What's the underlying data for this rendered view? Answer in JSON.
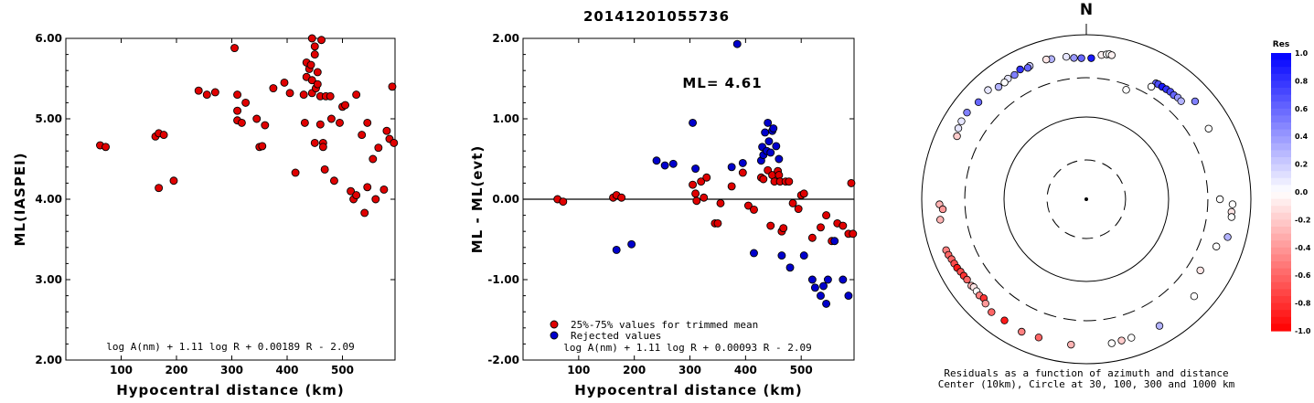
{
  "title": "20141201055736",
  "chart_data": [
    {
      "type": "scatter",
      "xlabel": "Hypocentral distance (km)",
      "ylabel": "ML(IASPEI)",
      "xlim": [
        0,
        595
      ],
      "ylim": [
        2.0,
        6.0
      ],
      "x_ticks": [
        "100",
        "200",
        "300",
        "400",
        "500"
      ],
      "y_ticks": [
        "2.00",
        "3.00",
        "4.00",
        "5.00",
        "6.00"
      ],
      "formula": "log A(nm) + 1.11 log R + 0.00189 R - 2.09",
      "series": [
        {
          "color": "#e00000",
          "points": [
            [
              62,
              4.67
            ],
            [
              72,
              4.65
            ],
            [
              162,
              4.78
            ],
            [
              168,
              4.82
            ],
            [
              177,
              4.8
            ],
            [
              168,
              4.14
            ],
            [
              195,
              4.23
            ],
            [
              240,
              5.35
            ],
            [
              255,
              5.3
            ],
            [
              270,
              5.33
            ],
            [
              305,
              5.88
            ],
            [
              310,
              5.3
            ],
            [
              310,
              5.1
            ],
            [
              310,
              4.98
            ],
            [
              318,
              4.95
            ],
            [
              325,
              5.2
            ],
            [
              345,
              5.0
            ],
            [
              350,
              4.65
            ],
            [
              355,
              4.66
            ],
            [
              360,
              4.92
            ],
            [
              375,
              5.38
            ],
            [
              395,
              5.45
            ],
            [
              405,
              5.32
            ],
            [
              415,
              4.33
            ],
            [
              430,
              5.3
            ],
            [
              432,
              4.95
            ],
            [
              435,
              5.52
            ],
            [
              435,
              5.7
            ],
            [
              440,
              5.62
            ],
            [
              443,
              5.67
            ],
            [
              445,
              6.0
            ],
            [
              445,
              5.48
            ],
            [
              445,
              5.32
            ],
            [
              450,
              5.9
            ],
            [
              450,
              5.8
            ],
            [
              450,
              4.7
            ],
            [
              452,
              5.38
            ],
            [
              455,
              5.58
            ],
            [
              455,
              5.43
            ],
            [
              460,
              5.28
            ],
            [
              460,
              4.93
            ],
            [
              462,
              5.98
            ],
            [
              465,
              4.7
            ],
            [
              465,
              4.65
            ],
            [
              468,
              4.37
            ],
            [
              470,
              5.28
            ],
            [
              478,
              5.28
            ],
            [
              480,
              5.0
            ],
            [
              485,
              4.23
            ],
            [
              495,
              4.95
            ],
            [
              500,
              5.15
            ],
            [
              505,
              5.17
            ],
            [
              515,
              4.1
            ],
            [
              520,
              4.0
            ],
            [
              525,
              5.3
            ],
            [
              525,
              4.05
            ],
            [
              535,
              4.8
            ],
            [
              540,
              3.83
            ],
            [
              545,
              4.15
            ],
            [
              545,
              4.95
            ],
            [
              555,
              4.5
            ],
            [
              560,
              4.0
            ],
            [
              565,
              4.64
            ],
            [
              575,
              4.12
            ],
            [
              580,
              4.85
            ],
            [
              585,
              4.75
            ],
            [
              590,
              5.4
            ],
            [
              593,
              4.7
            ]
          ]
        }
      ]
    },
    {
      "type": "scatter",
      "xlabel": "Hypocentral distance (km)",
      "ylabel": "ML - ML(evt)",
      "xlim": [
        0,
        595
      ],
      "ylim": [
        -2.0,
        2.0
      ],
      "x_ticks": [
        "100",
        "200",
        "300",
        "400",
        "500"
      ],
      "y_ticks": [
        "-2.00",
        "-1.00",
        "0.00",
        "1.00",
        "2.00"
      ],
      "reference_line": 0.0,
      "annotation": "ML= 4.61",
      "formula": "log A(nm) + 1.11 log R + 0.00093 R - 2.09",
      "legend": [
        "25%-75% values for trimmed mean",
        "Rejected values"
      ],
      "series": [
        {
          "name": "25%-75% values for trimmed mean",
          "color": "#e00000",
          "points": [
            [
              62,
              0.0
            ],
            [
              72,
              -0.03
            ],
            [
              162,
              0.02
            ],
            [
              168,
              0.05
            ],
            [
              177,
              0.02
            ],
            [
              305,
              0.18
            ],
            [
              310,
              0.07
            ],
            [
              312,
              -0.02
            ],
            [
              320,
              0.22
            ],
            [
              325,
              0.02
            ],
            [
              330,
              0.27
            ],
            [
              345,
              -0.3
            ],
            [
              350,
              -0.3
            ],
            [
              355,
              -0.05
            ],
            [
              375,
              0.16
            ],
            [
              395,
              0.33
            ],
            [
              405,
              -0.08
            ],
            [
              415,
              -0.13
            ],
            [
              428,
              0.27
            ],
            [
              432,
              0.25
            ],
            [
              440,
              0.36
            ],
            [
              445,
              -0.33
            ],
            [
              448,
              0.3
            ],
            [
              452,
              0.22
            ],
            [
              458,
              0.35
            ],
            [
              460,
              0.3
            ],
            [
              462,
              0.22
            ],
            [
              465,
              -0.4
            ],
            [
              468,
              -0.36
            ],
            [
              472,
              0.22
            ],
            [
              478,
              0.22
            ],
            [
              485,
              -0.05
            ],
            [
              495,
              -0.12
            ],
            [
              500,
              0.05
            ],
            [
              505,
              0.07
            ],
            [
              520,
              -0.48
            ],
            [
              535,
              -0.35
            ],
            [
              545,
              -0.2
            ],
            [
              555,
              -0.52
            ],
            [
              565,
              -0.3
            ],
            [
              575,
              -0.33
            ],
            [
              585,
              -0.43
            ],
            [
              590,
              0.2
            ],
            [
              593,
              -0.43
            ]
          ]
        },
        {
          "name": "Rejected values",
          "color": "#0000cc",
          "points": [
            [
              168,
              -0.63
            ],
            [
              195,
              -0.56
            ],
            [
              240,
              0.48
            ],
            [
              255,
              0.42
            ],
            [
              270,
              0.44
            ],
            [
              305,
              0.95
            ],
            [
              310,
              0.38
            ],
            [
              375,
              0.4
            ],
            [
              385,
              1.93
            ],
            [
              395,
              0.45
            ],
            [
              415,
              -0.67
            ],
            [
              428,
              0.48
            ],
            [
              430,
              0.65
            ],
            [
              432,
              0.55
            ],
            [
              435,
              0.83
            ],
            [
              438,
              0.6
            ],
            [
              440,
              0.95
            ],
            [
              442,
              0.72
            ],
            [
              445,
              0.58
            ],
            [
              448,
              0.85
            ],
            [
              450,
              0.88
            ],
            [
              455,
              0.66
            ],
            [
              460,
              0.5
            ],
            [
              465,
              -0.7
            ],
            [
              480,
              -0.85
            ],
            [
              505,
              -0.7
            ],
            [
              520,
              -1.0
            ],
            [
              525,
              -1.1
            ],
            [
              535,
              -1.2
            ],
            [
              540,
              -1.08
            ],
            [
              545,
              -1.3
            ],
            [
              548,
              -1.0
            ],
            [
              560,
              -0.52
            ],
            [
              575,
              -1.0
            ],
            [
              585,
              -1.2
            ]
          ]
        }
      ]
    },
    {
      "type": "polar-scatter",
      "north_label": "N",
      "caption_line1": "Residuals as a function of azimuth and distance",
      "caption_line2": "Center (10km), Circle at 30, 100, 300 and 1000 km",
      "colorbar_title": "Res",
      "colorbar_ticks": [
        "1.0",
        "0.8",
        "0.6",
        "0.4",
        "0.2",
        "0.0",
        "-0.2",
        "-0.4",
        "-0.6",
        "-0.8",
        "-1.0"
      ],
      "colorbar_range": [
        -1.0,
        1.0
      ],
      "colors": {
        "positive": "#0000ff",
        "neutral": "#ffffff",
        "negative": "#ff0000"
      },
      "rings_km": [
        30,
        100,
        300,
        1000
      ],
      "points_az_dist_res": [
        [
          2,
          520,
          0.9
        ],
        [
          358,
          520,
          0.6
        ],
        [
          355,
          530,
          0.4
        ],
        [
          352,
          560,
          0.1
        ],
        [
          6,
          580,
          -0.05
        ],
        [
          8,
          600,
          0.0
        ],
        [
          9,
          610,
          0.0
        ],
        [
          10,
          600,
          -0.05
        ],
        [
          346,
          570,
          0.3
        ],
        [
          344,
          585,
          -0.1
        ],
        [
          337,
          575,
          0.2
        ],
        [
          333,
          590,
          0.8
        ],
        [
          336,
          560,
          0.6
        ],
        [
          330,
          555,
          0.5
        ],
        [
          327,
          560,
          0.1
        ],
        [
          325,
          540,
          0.0
        ],
        [
          322,
          540,
          0.3
        ],
        [
          318,
          610,
          0.1
        ],
        [
          312,
          580,
          0.6
        ],
        [
          306,
          620,
          0.5
        ],
        [
          302,
          615,
          0.1
        ],
        [
          299,
          600,
          0.1
        ],
        [
          296,
          560,
          -0.2
        ],
        [
          268,
          610,
          -0.3
        ],
        [
          266,
          560,
          -0.4
        ],
        [
          262,
          620,
          -0.3
        ],
        [
          250,
          650,
          -0.5
        ],
        [
          248,
          640,
          -0.6
        ],
        [
          246,
          620,
          -0.6
        ],
        [
          244,
          610,
          -0.7
        ],
        [
          242,
          600,
          -0.9
        ],
        [
          240,
          580,
          -0.7
        ],
        [
          238,
          570,
          -0.8
        ],
        [
          236,
          560,
          -0.6
        ],
        [
          233,
          560,
          -0.3
        ],
        [
          232,
          545,
          -0.1
        ],
        [
          230,
          550,
          0.0
        ],
        [
          228,
          560,
          -0.5
        ],
        [
          226,
          540,
          -0.8
        ],
        [
          224,
          580,
          -0.4
        ],
        [
          220,
          620,
          -0.6
        ],
        [
          214,
          600,
          -0.9
        ],
        [
          206,
          620,
          -0.5
        ],
        [
          199,
          600,
          -0.6
        ],
        [
          186,
          600,
          -0.3
        ],
        [
          170,
          600,
          0.0
        ],
        [
          166,
          590,
          -0.2
        ],
        [
          162,
          590,
          0.0
        ],
        [
          150,
          600,
          0.3
        ],
        [
          132,
          580,
          0.0
        ],
        [
          122,
          430,
          -0.1
        ],
        [
          92,
          600,
          0.0
        ],
        [
          95,
          590,
          -0.1
        ],
        [
          97,
          600,
          0.0
        ],
        [
          105,
          600,
          0.3
        ],
        [
          110,
          480,
          0.0
        ],
        [
          90,
          420,
          0.0
        ],
        [
          60,
          520,
          0.0
        ],
        [
          48,
          600,
          0.5
        ],
        [
          31,
          440,
          0.6
        ],
        [
          32,
          445,
          0.7
        ],
        [
          34,
          445,
          0.9
        ],
        [
          36,
          450,
          0.8
        ],
        [
          38,
          455,
          0.7
        ],
        [
          40,
          450,
          0.6
        ],
        [
          42,
          460,
          0.4
        ],
        [
          44,
          455,
          0.3
        ],
        [
          30,
          380,
          0.0
        ],
        [
          20,
          260,
          0.0
        ]
      ]
    }
  ]
}
